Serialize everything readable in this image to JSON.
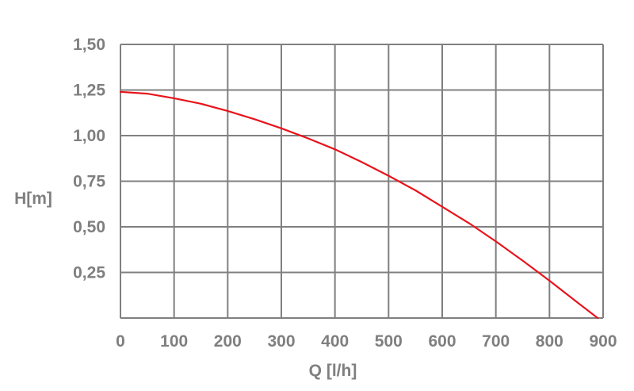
{
  "chart_data": {
    "type": "line",
    "title": "",
    "xlabel": "Q [l/h]",
    "ylabel": "H[m]",
    "xlim": [
      0,
      900
    ],
    "ylim": [
      0,
      1.5
    ],
    "x_ticks": [
      "0",
      "100",
      "200",
      "300",
      "400",
      "500",
      "600",
      "700",
      "800",
      "900"
    ],
    "y_ticks": [
      "0,25",
      "0,50",
      "0,75",
      "1,00",
      "1,25",
      "1,50"
    ],
    "grid": true,
    "series": [
      {
        "color": "#e8141b",
        "x": [
          0,
          50,
          100,
          150,
          200,
          250,
          300,
          350,
          400,
          450,
          500,
          550,
          600,
          650,
          700,
          750,
          800,
          850,
          890
        ],
        "y": [
          1.24,
          1.23,
          1.205,
          1.175,
          1.135,
          1.09,
          1.04,
          0.985,
          0.925,
          0.855,
          0.78,
          0.7,
          0.61,
          0.52,
          0.42,
          0.315,
          0.205,
          0.09,
          0.0
        ]
      }
    ]
  },
  "colors": {
    "grid": "#808080",
    "text": "#7f7f7f",
    "line": "#e8141b"
  }
}
